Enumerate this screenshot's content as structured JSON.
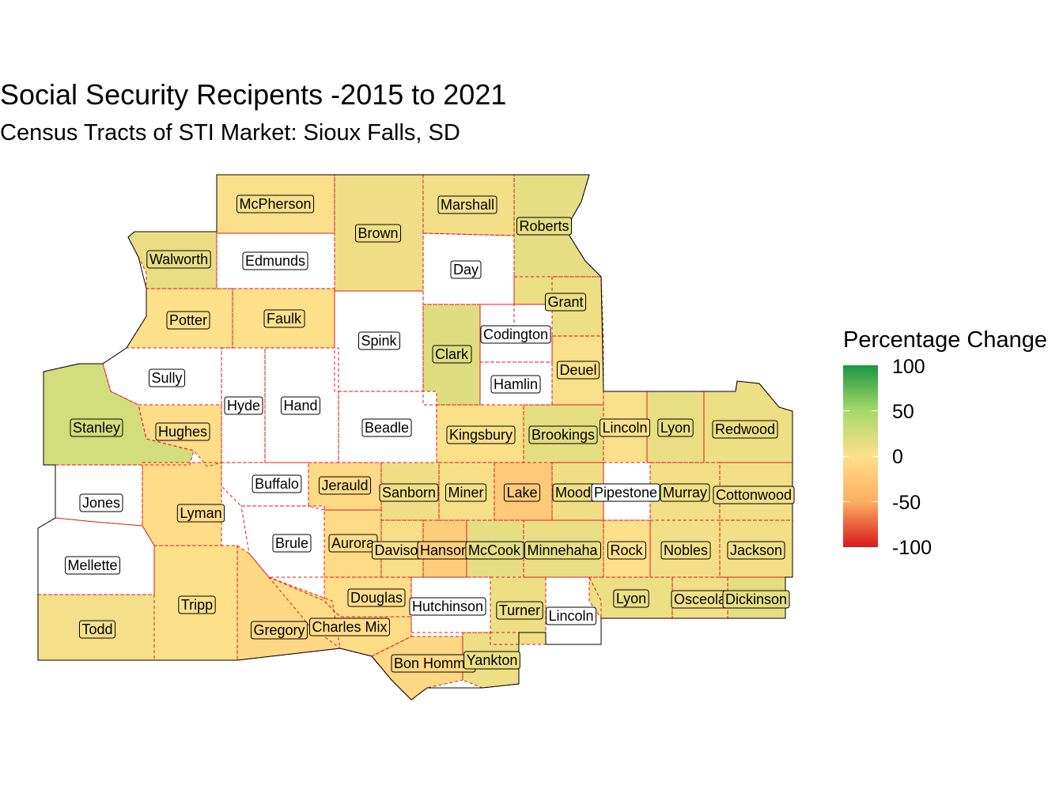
{
  "title": "Social Security Recipents -2015 to 2021",
  "subtitle": "Census Tracts of STI Market: Sioux Falls, SD",
  "legend": {
    "title": "Percentage Change",
    "ticks": [
      "100",
      "50",
      "0",
      "-50",
      "-100"
    ],
    "colors": {
      "high": "#1a9641",
      "mid_high": "#a6d96a",
      "mid": "#fee08b",
      "mid_low": "#fdae61",
      "low": "#d7191c"
    },
    "range": [
      -100,
      100
    ]
  },
  "colors": {
    "county_border": "#e31a1c",
    "outline": "#000000",
    "no_data": "#ffffff"
  },
  "counties": [
    {
      "name": "McPherson",
      "change": 2
    },
    {
      "name": "Walworth",
      "change": 12
    },
    {
      "name": "Edmunds",
      "change": null
    },
    {
      "name": "Brown",
      "change": 8
    },
    {
      "name": "Marshall",
      "change": 6
    },
    {
      "name": "Roberts",
      "change": 14
    },
    {
      "name": "Day",
      "change": null
    },
    {
      "name": "Grant",
      "change": 10
    },
    {
      "name": "Potter",
      "change": 1
    },
    {
      "name": "Faulk",
      "change": 0
    },
    {
      "name": "Spink",
      "change": null
    },
    {
      "name": "Codington",
      "change": null
    },
    {
      "name": "Clark",
      "change": 18
    },
    {
      "name": "Deuel",
      "change": 2
    },
    {
      "name": "Hamlin",
      "change": null
    },
    {
      "name": "Sully",
      "change": null
    },
    {
      "name": "Hyde",
      "change": null
    },
    {
      "name": "Hand",
      "change": null
    },
    {
      "name": "Beadle",
      "change": null
    },
    {
      "name": "Stanley",
      "change": 25
    },
    {
      "name": "Hughes",
      "change": -3
    },
    {
      "name": "Kingsbury",
      "change": 3
    },
    {
      "name": "Brookings",
      "change": 15
    },
    {
      "name": "Lincoln",
      "change": 2
    },
    {
      "name": "Lyon",
      "change": 12
    },
    {
      "name": "Redwood",
      "change": 10
    },
    {
      "name": "Jones",
      "change": null
    },
    {
      "name": "Lyman",
      "change": -4
    },
    {
      "name": "Buffalo",
      "change": null
    },
    {
      "name": "Jerauld",
      "change": -6
    },
    {
      "name": "Sanborn",
      "change": 8
    },
    {
      "name": "Miner",
      "change": 4
    },
    {
      "name": "Lake",
      "change": -22
    },
    {
      "name": "Moody",
      "change": 8
    },
    {
      "name": "Pipestone",
      "change": null
    },
    {
      "name": "Murray",
      "change": 7
    },
    {
      "name": "Cottonwood",
      "change": 6
    },
    {
      "name": "Brule",
      "change": null
    },
    {
      "name": "Aurora",
      "change": -5
    },
    {
      "name": "Davison",
      "change": 4
    },
    {
      "name": "Hanson",
      "change": -18
    },
    {
      "name": "McCook",
      "change": 14
    },
    {
      "name": "Minnehaha",
      "change": 12
    },
    {
      "name": "Rock",
      "change": 0
    },
    {
      "name": "Nobles",
      "change": 6
    },
    {
      "name": "Jackson",
      "change": 7
    },
    {
      "name": "Mellette",
      "change": null
    },
    {
      "name": "Tripp",
      "change": 1
    },
    {
      "name": "Todd",
      "change": 5
    },
    {
      "name": "Gregory",
      "change": -8
    },
    {
      "name": "Douglas",
      "change": -2
    },
    {
      "name": "Charles Mix",
      "change": -4
    },
    {
      "name": "Hutchinson",
      "change": null
    },
    {
      "name": "Turner",
      "change": 9
    },
    {
      "name": "Lincoln",
      "change": null
    },
    {
      "name": "Lyon",
      "change": 10
    },
    {
      "name": "Osceola",
      "change": 6
    },
    {
      "name": "Dickinson",
      "change": 15
    },
    {
      "name": "Bon Homme",
      "change": -8
    },
    {
      "name": "Yankton",
      "change": 10
    }
  ]
}
